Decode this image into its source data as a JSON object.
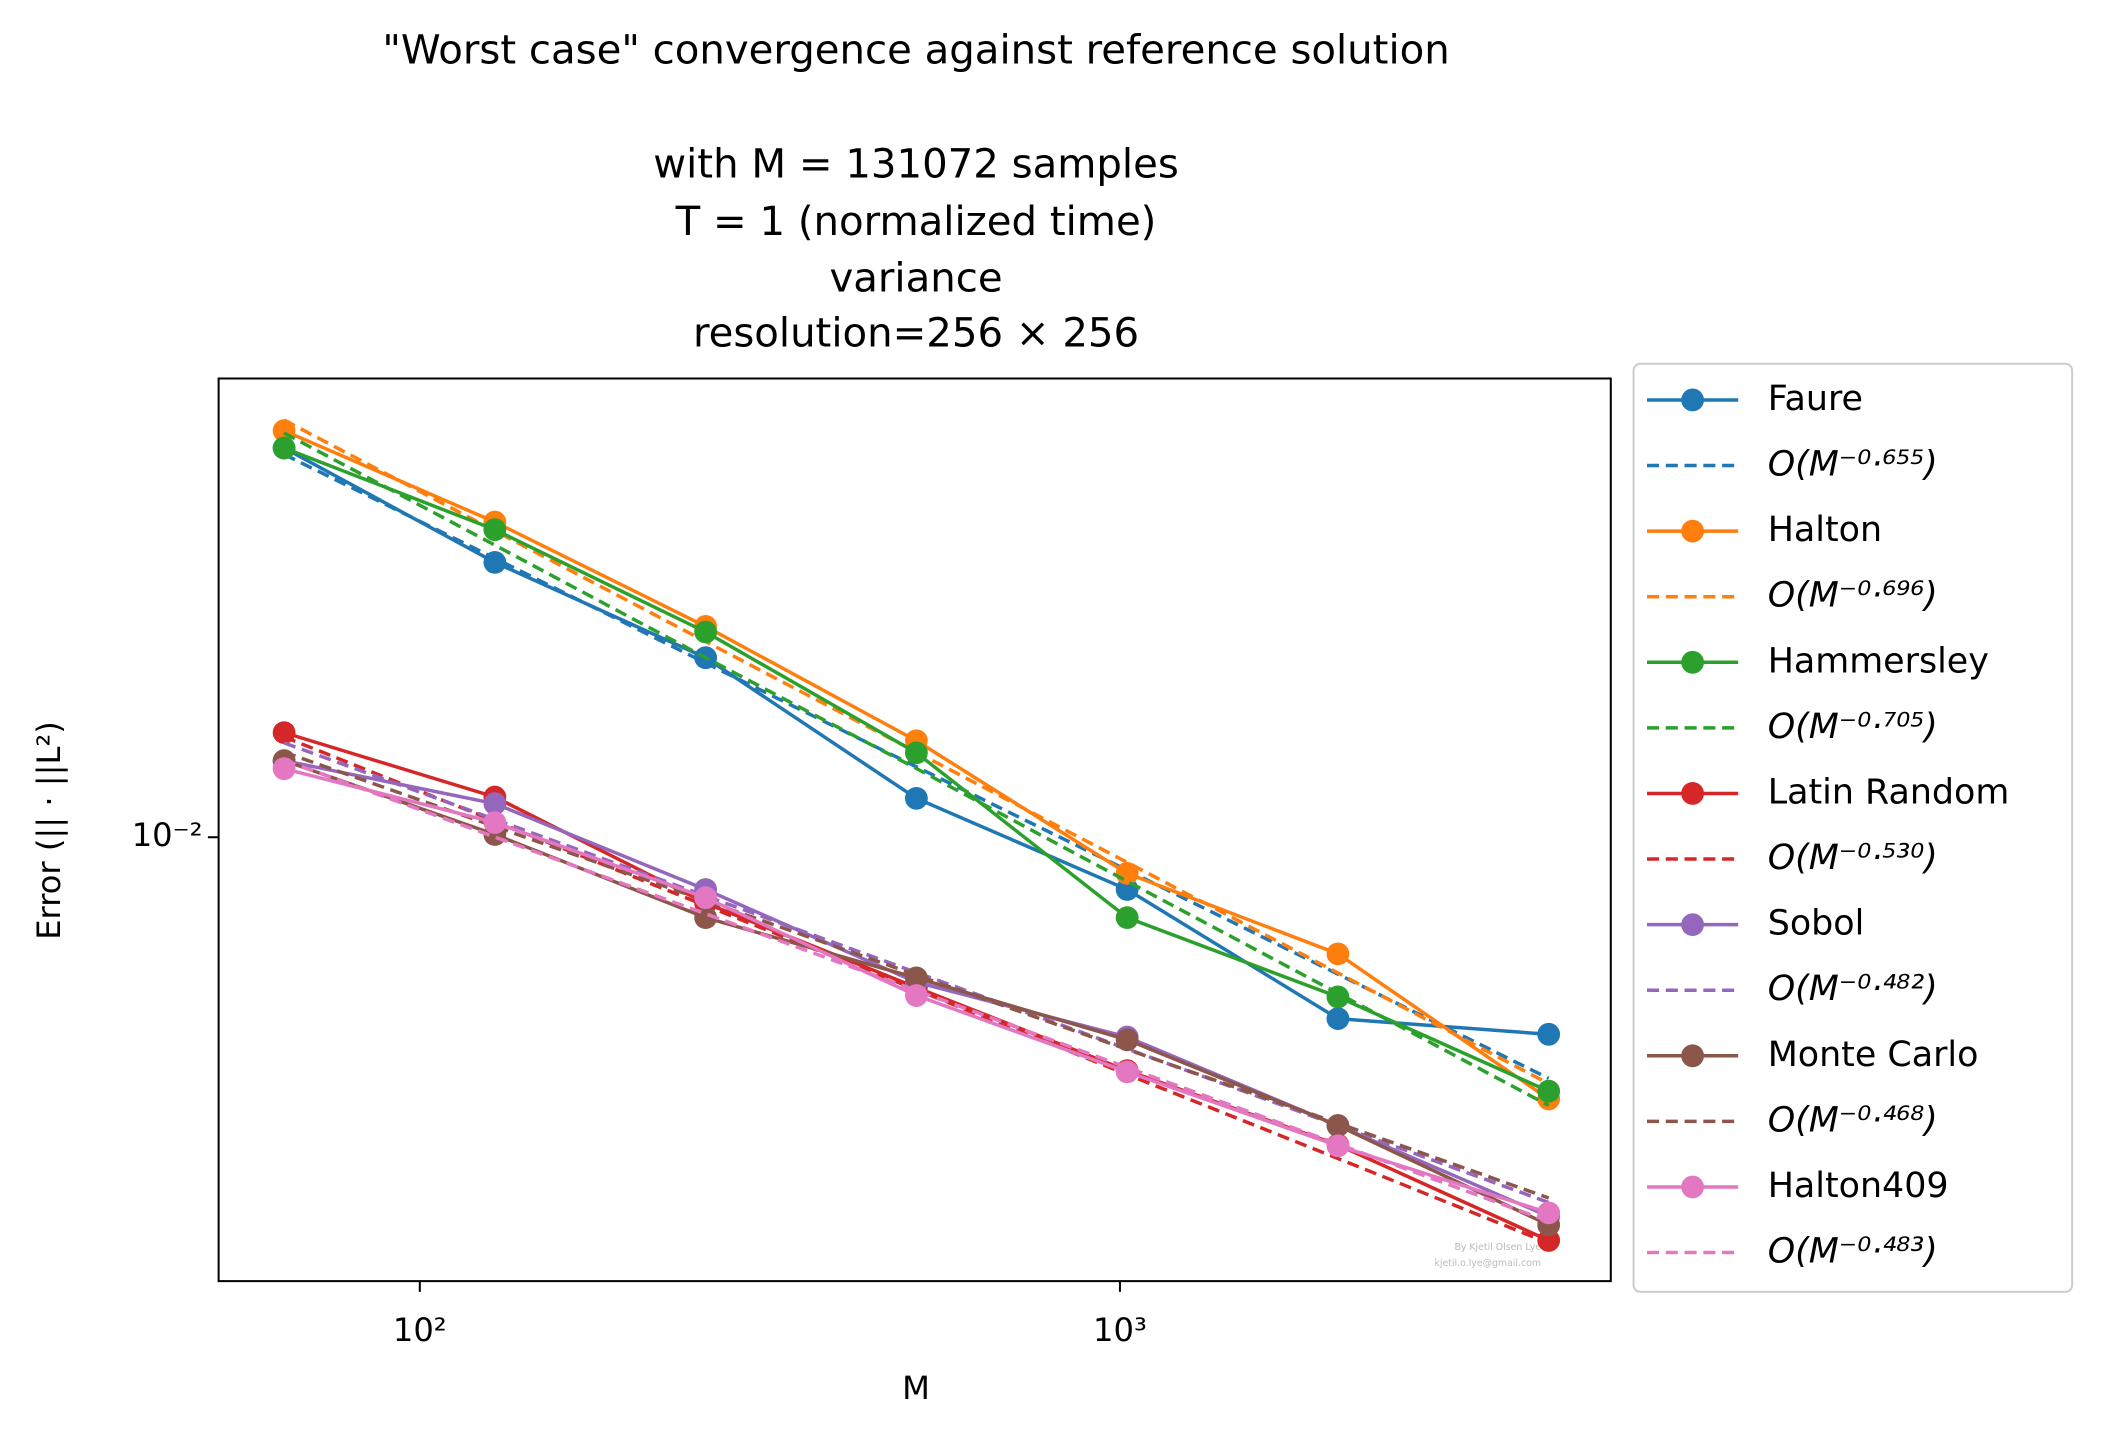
{
  "chart_data": {
    "type": "line",
    "title": "\"Worst case\" convergence against reference solution",
    "subtitle": [
      "with M = 131072 samples",
      "T = 1 (normalized time)",
      "variance",
      "resolution=256 × 256"
    ],
    "x_label": "M",
    "y_label": "Error (|| · ||L²)",
    "annotations": [
      "By Kjetil Olsen Lye",
      "kjetil.o.lye@gmail.com"
    ],
    "x": [
      64,
      128,
      256,
      512,
      1024,
      2048,
      4096
    ],
    "xscale": "log",
    "yscale": "log",
    "xlim": [
      51.6,
      5024
    ],
    "ylim": [
      0.00144,
      0.0741
    ],
    "xticks": [
      {
        "value": 100,
        "label": "10²"
      },
      {
        "value": 1000,
        "label": "10³"
      }
    ],
    "yticks": [
      {
        "value": 0.01,
        "label": "10⁻²"
      }
    ],
    "legend": "outside-right",
    "series": [
      {
        "name": "Faure",
        "color": "#1f77b4",
        "linestyle": "solid",
        "marker": true,
        "values": [
          0.0547,
          0.0332,
          0.0219,
          0.01185,
          0.00796,
          0.00453,
          0.00423
        ]
      },
      {
        "name": "O(M⁻⁰·⁶⁵⁵)",
        "color": "#1f77b4",
        "linestyle": "dashed",
        "marker": false,
        "values": [
          0.0532,
          0.0338,
          0.0214,
          0.0136,
          0.00866,
          0.0055,
          0.00349
        ]
      },
      {
        "name": "Halton",
        "color": "#ff7f0e",
        "linestyle": "solid",
        "marker": true,
        "values": [
          0.059,
          0.0396,
          0.0251,
          0.01524,
          0.00854,
          0.00601,
          0.00319
        ]
      },
      {
        "name": "O(M⁻⁰·⁶⁹⁶)",
        "color": "#ff7f0e",
        "linestyle": "dashed",
        "marker": false,
        "values": [
          0.0618,
          0.0381,
          0.0235,
          0.0145,
          0.00896,
          0.00553,
          0.00341
        ]
      },
      {
        "name": "Hammersley",
        "color": "#2ca02c",
        "linestyle": "solid",
        "marker": true,
        "values": [
          0.0547,
          0.0383,
          0.0245,
          0.01446,
          0.00704,
          0.00498,
          0.0033
        ]
      },
      {
        "name": "O(M⁻⁰·⁷⁰⁵)",
        "color": "#2ca02c",
        "linestyle": "dashed",
        "marker": false,
        "values": [
          0.0584,
          0.0358,
          0.0219,
          0.0135,
          0.00825,
          0.00506,
          0.0031
        ]
      },
      {
        "name": "Latin Random",
        "color": "#d62728",
        "linestyle": "solid",
        "marker": true,
        "values": [
          0.01579,
          0.01192,
          0.0075,
          0.00519,
          0.00361,
          0.00261,
          0.00172
        ]
      },
      {
        "name": "O(M⁻⁰·⁵³⁰)",
        "color": "#d62728",
        "linestyle": "dashed",
        "marker": false,
        "values": [
          0.0155,
          0.01073,
          0.00742,
          0.00514,
          0.00355,
          0.00246,
          0.0017
        ]
      },
      {
        "name": "Sobol",
        "color": "#9467bd",
        "linestyle": "solid",
        "marker": true,
        "values": [
          0.01397,
          0.01158,
          0.00796,
          0.00531,
          0.00418,
          0.00284,
          0.00191
        ]
      },
      {
        "name": "O(M⁻⁰·⁴⁸²)",
        "color": "#9467bd",
        "linestyle": "dashed",
        "marker": false,
        "values": [
          0.0151,
          0.01081,
          0.00774,
          0.00554,
          0.00397,
          0.00284,
          0.00203
        ]
      },
      {
        "name": "Monte Carlo",
        "color": "#8c564b",
        "linestyle": "solid",
        "marker": true,
        "values": [
          0.01397,
          0.01012,
          0.00704,
          0.00541,
          0.00413,
          0.00284,
          0.00184
        ]
      },
      {
        "name": "O(M⁻⁰·⁴⁶⁸)",
        "color": "#8c564b",
        "linestyle": "dashed",
        "marker": false,
        "values": [
          0.0145,
          0.01048,
          0.00758,
          0.00548,
          0.00396,
          0.00287,
          0.00207
        ]
      },
      {
        "name": "Halton409",
        "color": "#e377c2",
        "linestyle": "solid",
        "marker": true,
        "values": [
          0.01349,
          0.01066,
          0.00768,
          0.00501,
          0.00359,
          0.0026,
          0.00194
        ]
      },
      {
        "name": "O(M⁻⁰·⁴⁸³)",
        "color": "#e377c2",
        "linestyle": "dashed",
        "marker": false,
        "values": [
          0.014,
          0.01001,
          0.00716,
          0.00512,
          0.00366,
          0.00262,
          0.00187
        ]
      }
    ]
  }
}
